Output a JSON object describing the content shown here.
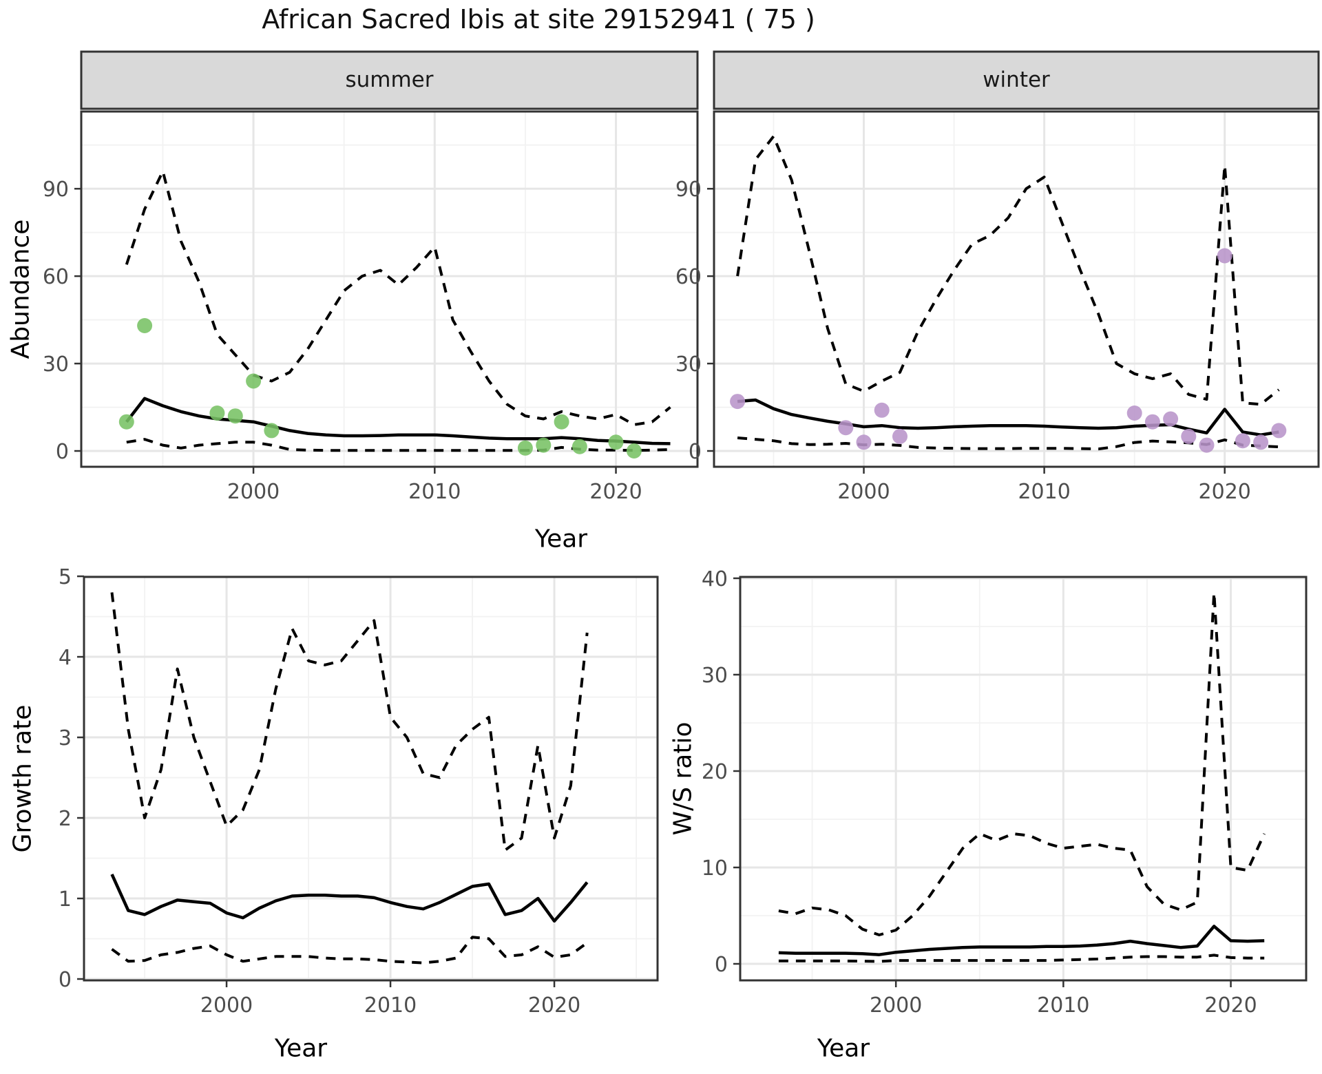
{
  "title": "African Sacred Ibis at site 29152941 ( 75 )",
  "colors": {
    "line": "#000000",
    "observed_summer": "#77c164",
    "observed_winter": "#b894c9",
    "strip_bg": "#d9d9d9",
    "panel_border": "#333333",
    "grid_major": "#e6e6e6",
    "grid_minor": "#f2f2f2",
    "tick_text": "#4d4d4d"
  },
  "axis_titles": {
    "abundance": "Abundance",
    "growth_rate": "Growth rate",
    "ws_ratio": "W/S ratio",
    "year": "Year"
  },
  "chart_data": [
    {
      "panel": "abundance_summer",
      "type": "line",
      "facet_label": "summer",
      "xlabel": "Year",
      "ylabel": "Abundance",
      "legend": "none",
      "grid": true,
      "xlim": [
        1990.5,
        2024.5
      ],
      "ylim": [
        -5.43,
        116.5
      ],
      "x_ticks": [
        2000,
        2010,
        2020
      ],
      "x_minor": [
        1995,
        2005,
        2015
      ],
      "y_ticks": [
        0,
        30,
        60,
        90
      ],
      "y_minor": [
        15,
        45,
        75,
        105
      ],
      "x": [
        1993,
        1994,
        1995,
        1996,
        1997,
        1998,
        1999,
        2000,
        2001,
        2002,
        2003,
        2004,
        2005,
        2006,
        2007,
        2008,
        2009,
        2010,
        2011,
        2012,
        2013,
        2014,
        2015,
        2016,
        2017,
        2018,
        2019,
        2020,
        2021,
        2022,
        2023
      ],
      "series": [
        {
          "name": "fit",
          "style": "solid",
          "values": [
            10,
            18,
            15.5,
            13.5,
            12,
            11,
            10.5,
            10,
            8.5,
            7,
            6,
            5.5,
            5.2,
            5.2,
            5.3,
            5.5,
            5.5,
            5.5,
            5.2,
            4.8,
            4.4,
            4.2,
            4.2,
            4.2,
            4.6,
            4.2,
            3.6,
            3.4,
            3,
            2.6,
            2.5
          ]
        },
        {
          "name": "upper_ci",
          "style": "dashed",
          "values": [
            64,
            83,
            96,
            72,
            58,
            40,
            33,
            26,
            24,
            27,
            35,
            45,
            55,
            60,
            62,
            57,
            63,
            70,
            45,
            34,
            24,
            16,
            12,
            11,
            13.5,
            12,
            11,
            12.5,
            9,
            10,
            15
          ]
        },
        {
          "name": "lower_ci",
          "style": "dashed",
          "values": [
            3,
            4,
            2,
            1,
            2,
            2.5,
            3,
            3,
            2,
            0.5,
            0.3,
            0.2,
            0.2,
            0.2,
            0.2,
            0.2,
            0.2,
            0.2,
            0.2,
            0.2,
            0.2,
            0.2,
            0.2,
            0.3,
            1.2,
            0.6,
            0.3,
            0.3,
            0.2,
            0.3,
            0.5
          ]
        }
      ],
      "points": {
        "name": "observed",
        "color": "#77c164",
        "x": [
          1993,
          1994,
          1998,
          1999,
          2000,
          2001,
          2015,
          2016,
          2017,
          2018,
          2020,
          2021
        ],
        "y": [
          10,
          43,
          13,
          12,
          24,
          7,
          1,
          2,
          10,
          1.5,
          3,
          0
        ]
      }
    },
    {
      "panel": "abundance_winter",
      "type": "line",
      "facet_label": "winter",
      "xlabel": "Year",
      "ylabel": "Abundance",
      "legend": "none",
      "grid": true,
      "xlim": [
        1991.7,
        2025.2
      ],
      "ylim": [
        -5.43,
        116.5
      ],
      "x_ticks": [
        2000,
        2010,
        2020
      ],
      "x_minor": [
        1995,
        2005,
        2015
      ],
      "y_ticks": [
        0,
        30,
        60,
        90
      ],
      "y_minor": [
        15,
        45,
        75,
        105
      ],
      "x": [
        1993,
        1994,
        1995,
        1996,
        1997,
        1998,
        1999,
        2000,
        2001,
        2002,
        2003,
        2004,
        2005,
        2006,
        2007,
        2008,
        2009,
        2010,
        2011,
        2012,
        2013,
        2014,
        2015,
        2016,
        2017,
        2018,
        2019,
        2020,
        2021,
        2022,
        2023
      ],
      "series": [
        {
          "name": "fit",
          "style": "solid",
          "values": [
            17,
            17.5,
            14.5,
            12.5,
            11.3,
            10.2,
            9.3,
            8.3,
            8.7,
            8,
            7.8,
            8,
            8.3,
            8.5,
            8.7,
            8.7,
            8.7,
            8.5,
            8.2,
            8,
            7.8,
            8,
            8.5,
            8.8,
            9,
            7.5,
            6.2,
            14.3,
            6.5,
            5.5,
            6.5
          ]
        },
        {
          "name": "upper_ci",
          "style": "dashed",
          "values": [
            60,
            100,
            108,
            93,
            68,
            42,
            23,
            20.5,
            24,
            27,
            41,
            52,
            62,
            71,
            74,
            80,
            90,
            94,
            78,
            62,
            47,
            30,
            26.5,
            24.8,
            26.5,
            19.4,
            17.7,
            98,
            16.5,
            16,
            21
          ]
        },
        {
          "name": "lower_ci",
          "style": "dashed",
          "values": [
            4.5,
            4,
            3.5,
            2.5,
            2.2,
            2.3,
            2.6,
            2.1,
            2.3,
            1.9,
            1.2,
            1,
            0.9,
            0.8,
            0.8,
            0.8,
            0.9,
            0.9,
            0.9,
            0.8,
            0.7,
            1.5,
            2.9,
            3.4,
            3.1,
            2.8,
            2.2,
            3.8,
            2,
            1.7,
            1.4
          ]
        }
      ],
      "points": {
        "name": "observed",
        "color": "#b894c9",
        "x": [
          1993,
          1999,
          2000,
          2001,
          2002,
          2015,
          2016,
          2017,
          2018,
          2019,
          2020,
          2021,
          2022,
          2023
        ],
        "y": [
          17,
          8,
          3,
          14,
          5,
          13,
          10,
          11,
          5,
          2,
          67,
          3.5,
          3,
          7
        ]
      }
    },
    {
      "panel": "growth_rate",
      "type": "line",
      "facet_label": "",
      "xlabel": "Year",
      "ylabel": "Growth rate",
      "legend": "none",
      "grid": true,
      "xlim": [
        1991.3,
        2026.3
      ],
      "ylim": [
        -0.017,
        4.992
      ],
      "x_ticks": [
        2000,
        2010,
        2020
      ],
      "x_minor": [
        1995,
        2005,
        2015,
        2025
      ],
      "y_ticks": [
        0,
        1,
        2,
        3,
        4,
        5
      ],
      "y_minor": [
        0.5,
        1.5,
        2.5,
        3.5,
        4.5
      ],
      "x": [
        1993,
        1994,
        1995,
        1996,
        1997,
        1998,
        1999,
        2000,
        2001,
        2002,
        2003,
        2004,
        2005,
        2006,
        2007,
        2008,
        2009,
        2010,
        2011,
        2012,
        2013,
        2014,
        2015,
        2016,
        2017,
        2018,
        2019,
        2020,
        2021,
        2022
      ],
      "series": [
        {
          "name": "fit",
          "style": "solid",
          "values": [
            1.3,
            0.85,
            0.8,
            0.9,
            0.98,
            0.96,
            0.94,
            0.82,
            0.76,
            0.88,
            0.97,
            1.03,
            1.04,
            1.04,
            1.03,
            1.03,
            1.01,
            0.95,
            0.9,
            0.87,
            0.95,
            1.05,
            1.15,
            1.18,
            0.8,
            0.85,
            1.0,
            0.72,
            0.95,
            1.2
          ]
        },
        {
          "name": "upper_ci",
          "style": "dashed",
          "values": [
            4.8,
            3.1,
            2.0,
            2.6,
            3.85,
            3.0,
            2.45,
            1.9,
            2.1,
            2.6,
            3.6,
            4.35,
            3.95,
            3.9,
            3.95,
            4.2,
            4.45,
            3.25,
            3.0,
            2.55,
            2.5,
            2.9,
            3.1,
            3.25,
            1.6,
            1.75,
            2.9,
            1.75,
            2.4,
            4.3
          ]
        },
        {
          "name": "lower_ci",
          "style": "dashed",
          "values": [
            0.37,
            0.22,
            0.23,
            0.3,
            0.33,
            0.38,
            0.41,
            0.3,
            0.22,
            0.25,
            0.28,
            0.28,
            0.28,
            0.26,
            0.25,
            0.25,
            0.24,
            0.22,
            0.21,
            0.2,
            0.22,
            0.26,
            0.52,
            0.5,
            0.28,
            0.3,
            0.4,
            0.27,
            0.3,
            0.45
          ]
        }
      ],
      "points": {
        "name": "observed",
        "color": "#000000",
        "x": [],
        "y": []
      }
    },
    {
      "panel": "ws_ratio",
      "type": "line",
      "facet_label": "",
      "xlabel": "Year",
      "ylabel": "W/S ratio",
      "legend": "none",
      "grid": true,
      "xlim": [
        1990.7,
        2024.5
      ],
      "ylim": [
        -1.714,
        40.14
      ],
      "x_ticks": [
        2000,
        2010,
        2020
      ],
      "x_minor": [
        1995,
        2005,
        2015
      ],
      "y_ticks": [
        0,
        10,
        20,
        30,
        40
      ],
      "y_minor": [
        5,
        15,
        25,
        35
      ],
      "x": [
        1993,
        1994,
        1995,
        1996,
        1997,
        1998,
        1999,
        2000,
        2001,
        2002,
        2003,
        2004,
        2005,
        2006,
        2007,
        2008,
        2009,
        2010,
        2011,
        2012,
        2013,
        2014,
        2015,
        2016,
        2017,
        2018,
        2019,
        2020,
        2021,
        2022
      ],
      "series": [
        {
          "name": "fit",
          "style": "solid",
          "values": [
            1.15,
            1.1,
            1.1,
            1.1,
            1.1,
            1.05,
            0.95,
            1.2,
            1.35,
            1.5,
            1.6,
            1.7,
            1.75,
            1.75,
            1.75,
            1.75,
            1.8,
            1.8,
            1.85,
            1.95,
            2.1,
            2.35,
            2.1,
            1.9,
            1.7,
            1.85,
            3.9,
            2.4,
            2.35,
            2.4
          ]
        },
        {
          "name": "upper_ci",
          "style": "dashed",
          "values": [
            5.5,
            5.2,
            5.8,
            5.6,
            5.0,
            3.6,
            3.0,
            3.5,
            5.0,
            7.0,
            9.5,
            12.0,
            13.5,
            12.8,
            13.5,
            13.3,
            12.5,
            12.0,
            12.2,
            12.4,
            12.0,
            11.8,
            8.0,
            6.2,
            5.6,
            6.4,
            38.5,
            10.0,
            9.7,
            13.5
          ]
        },
        {
          "name": "lower_ci",
          "style": "dashed",
          "values": [
            0.3,
            0.3,
            0.3,
            0.3,
            0.3,
            0.28,
            0.25,
            0.35,
            0.35,
            0.35,
            0.35,
            0.35,
            0.35,
            0.35,
            0.35,
            0.35,
            0.35,
            0.4,
            0.45,
            0.5,
            0.6,
            0.7,
            0.75,
            0.75,
            0.7,
            0.7,
            0.9,
            0.65,
            0.6,
            0.6
          ]
        }
      ],
      "points": {
        "name": "observed",
        "color": "#000000",
        "x": [],
        "y": []
      }
    }
  ]
}
